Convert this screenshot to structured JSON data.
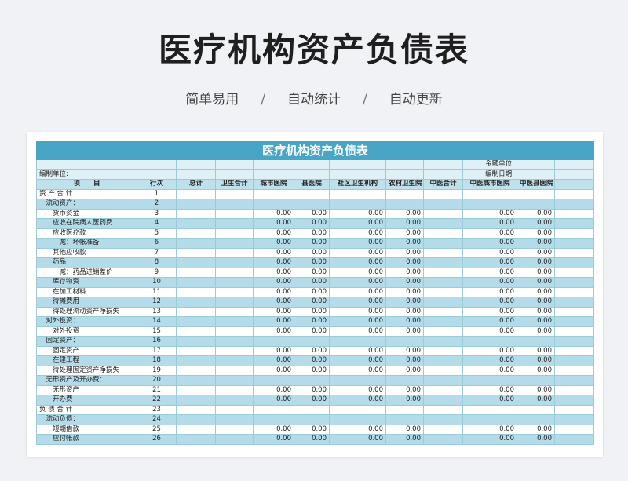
{
  "page": {
    "title": "医疗机构资产负债表",
    "taglines": [
      "简单易用",
      "自动统计",
      "自动更新"
    ],
    "separator": "/"
  },
  "sheet": {
    "banner": "医疗机构资产负债表",
    "amount_unit_label": "金额单位:",
    "prep_date_label": "编制日期:",
    "prep_unit_label": "编制单位:",
    "columns": [
      "项　　目",
      "行次",
      "总计",
      "卫生合计",
      "城市医院",
      "县医院",
      "社区卫生机构",
      "农村卫生院",
      "中医合计",
      "中医城市医院",
      "中医县医院",
      ""
    ],
    "rows": [
      {
        "item": "资 产 合 计",
        "idx": "1",
        "values": [
          "",
          "",
          "",
          "",
          "",
          "",
          "",
          "",
          "",
          ""
        ]
      },
      {
        "item": "　流动资产：",
        "idx": "2",
        "values": [
          "",
          "",
          "",
          "",
          "",
          "",
          "",
          "",
          "",
          ""
        ]
      },
      {
        "item": "　　货币资金",
        "idx": "3",
        "values": [
          "",
          "",
          "0.00",
          "0.00",
          "0.00",
          "0.00",
          "",
          "0.00",
          "0.00",
          ""
        ]
      },
      {
        "item": "　　应收在院病人医药费",
        "idx": "4",
        "values": [
          "",
          "",
          "0.00",
          "0.00",
          "0.00",
          "0.00",
          "",
          "0.00",
          "0.00",
          ""
        ]
      },
      {
        "item": "　　应收医疗款",
        "idx": "5",
        "values": [
          "",
          "",
          "0.00",
          "0.00",
          "0.00",
          "0.00",
          "",
          "0.00",
          "0.00",
          ""
        ]
      },
      {
        "item": "　　　减：坏帐准备",
        "idx": "6",
        "values": [
          "",
          "",
          "0.00",
          "0.00",
          "0.00",
          "0.00",
          "",
          "0.00",
          "0.00",
          ""
        ]
      },
      {
        "item": "　　其他应收款",
        "idx": "7",
        "values": [
          "",
          "",
          "0.00",
          "0.00",
          "0.00",
          "0.00",
          "",
          "0.00",
          "0.00",
          ""
        ]
      },
      {
        "item": "　　药品",
        "idx": "8",
        "values": [
          "",
          "",
          "0.00",
          "0.00",
          "0.00",
          "0.00",
          "",
          "0.00",
          "0.00",
          ""
        ]
      },
      {
        "item": "　　　减：药品进销差价",
        "idx": "9",
        "values": [
          "",
          "",
          "0.00",
          "0.00",
          "0.00",
          "0.00",
          "",
          "0.00",
          "0.00",
          ""
        ]
      },
      {
        "item": "　　库存物资",
        "idx": "10",
        "values": [
          "",
          "",
          "0.00",
          "0.00",
          "0.00",
          "0.00",
          "",
          "0.00",
          "0.00",
          ""
        ]
      },
      {
        "item": "　　在加工材料",
        "idx": "11",
        "values": [
          "",
          "",
          "0.00",
          "0.00",
          "0.00",
          "0.00",
          "",
          "0.00",
          "0.00",
          ""
        ]
      },
      {
        "item": "　　待摊费用",
        "idx": "12",
        "values": [
          "",
          "",
          "0.00",
          "0.00",
          "0.00",
          "0.00",
          "",
          "0.00",
          "0.00",
          ""
        ]
      },
      {
        "item": "　　待处理流动资产净损失",
        "idx": "13",
        "values": [
          "",
          "",
          "0.00",
          "0.00",
          "0.00",
          "0.00",
          "",
          "0.00",
          "0.00",
          ""
        ]
      },
      {
        "item": "　对外投资：",
        "idx": "14",
        "values": [
          "",
          "",
          "0.00",
          "0.00",
          "0.00",
          "0.00",
          "",
          "0.00",
          "0.00",
          ""
        ]
      },
      {
        "item": "　　对外投资",
        "idx": "15",
        "values": [
          "",
          "",
          "0.00",
          "0.00",
          "0.00",
          "0.00",
          "",
          "0.00",
          "0.00",
          ""
        ]
      },
      {
        "item": "　固定资产：",
        "idx": "16",
        "values": [
          "",
          "",
          "",
          "",
          "",
          "",
          "",
          "",
          "",
          ""
        ]
      },
      {
        "item": "　　固定资产",
        "idx": "17",
        "values": [
          "",
          "",
          "0.00",
          "0.00",
          "0.00",
          "0.00",
          "",
          "0.00",
          "0.00",
          ""
        ]
      },
      {
        "item": "　　在建工程",
        "idx": "18",
        "values": [
          "",
          "",
          "0.00",
          "0.00",
          "0.00",
          "0.00",
          "",
          "0.00",
          "0.00",
          ""
        ]
      },
      {
        "item": "　　待处理固定资产净损失",
        "idx": "19",
        "values": [
          "",
          "",
          "0.00",
          "0.00",
          "0.00",
          "0.00",
          "",
          "0.00",
          "0.00",
          ""
        ]
      },
      {
        "item": "　无形资产及开办费：",
        "idx": "20",
        "values": [
          "",
          "",
          "",
          "",
          "",
          "",
          "",
          "",
          "",
          ""
        ]
      },
      {
        "item": "　　无形资产",
        "idx": "21",
        "values": [
          "",
          "",
          "0.00",
          "0.00",
          "0.00",
          "0.00",
          "",
          "0.00",
          "0.00",
          ""
        ]
      },
      {
        "item": "　　开办费",
        "idx": "22",
        "values": [
          "",
          "",
          "0.00",
          "0.00",
          "0.00",
          "0.00",
          "",
          "0.00",
          "0.00",
          ""
        ]
      },
      {
        "item": "负 债 合 计",
        "idx": "23",
        "values": [
          "",
          "",
          "",
          "",
          "",
          "",
          "",
          "",
          "",
          ""
        ]
      },
      {
        "item": "　流动负债：",
        "idx": "24",
        "values": [
          "",
          "",
          "",
          "",
          "",
          "",
          "",
          "",
          "",
          ""
        ]
      },
      {
        "item": "　　短期借款",
        "idx": "25",
        "values": [
          "",
          "",
          "0.00",
          "0.00",
          "0.00",
          "0.00",
          "",
          "0.00",
          "0.00",
          ""
        ]
      },
      {
        "item": "　　应付帐款",
        "idx": "26",
        "values": [
          "",
          "",
          "0.00",
          "0.00",
          "0.00",
          "0.00",
          "",
          "0.00",
          "0.00",
          ""
        ]
      }
    ]
  }
}
